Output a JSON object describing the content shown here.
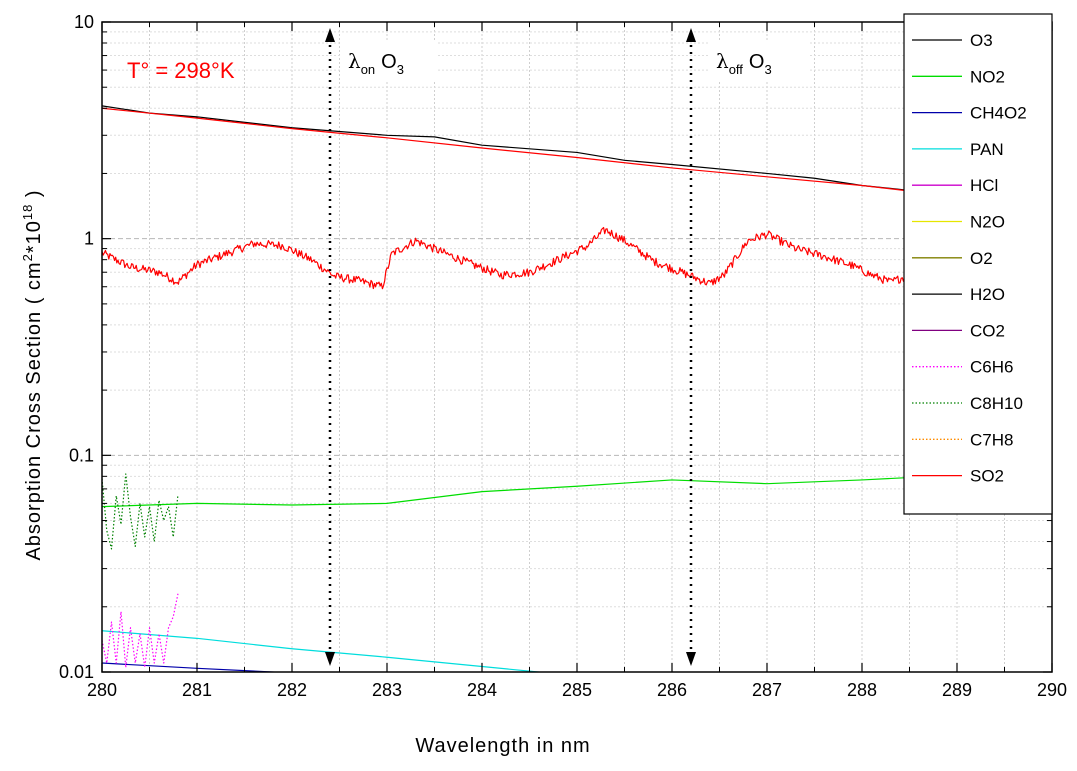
{
  "chart_data": {
    "type": "line",
    "xlabel": "Wavelength in nm",
    "ylabel_parts": {
      "prefix": "Absorption Cross Section ( cm",
      "sup1": "2",
      "mid": "*10",
      "sup2": "18",
      "suffix": " )"
    },
    "xlim": [
      280,
      290
    ],
    "ylim": [
      0.01,
      10
    ],
    "yscale": "log",
    "xticks": [
      280,
      281,
      282,
      283,
      284,
      285,
      286,
      287,
      288,
      289,
      290
    ],
    "xtick_labels": [
      "280",
      "281",
      "282",
      "283",
      "284",
      "285",
      "286",
      "287",
      "288",
      "289",
      "290"
    ],
    "yticks": [
      0.01,
      0.1,
      1,
      10
    ],
    "ytick_labels": [
      "0.01",
      "0.1",
      "1",
      "10"
    ],
    "grid": true,
    "legend_position": "top-right",
    "annotations": {
      "temperature": "T° = 298°K",
      "lambda_on": {
        "symbol": "λ",
        "sub": "on",
        "species": "O",
        "species_sub": "3",
        "x": 282.4
      },
      "lambda_off": {
        "symbol": "λ",
        "sub": "off",
        "species": "O",
        "species_sub": "3",
        "x": 286.2
      }
    },
    "series": [
      {
        "name": "O3",
        "color": "#000000",
        "style": "solid",
        "x": [
          280,
          280.5,
          281,
          282,
          283,
          283.5,
          284,
          285,
          285.5,
          286,
          287,
          287.5,
          288,
          288.5
        ],
        "y": [
          4.1,
          3.8,
          3.65,
          3.25,
          3.0,
          2.95,
          2.7,
          2.5,
          2.3,
          2.2,
          2.0,
          1.9,
          1.76,
          1.67
        ]
      },
      {
        "name": "NO2",
        "color": "#00dd00",
        "style": "solid",
        "x": [
          280,
          281,
          282,
          283,
          284,
          285,
          286,
          287,
          288,
          288.5
        ],
        "y": [
          0.058,
          0.06,
          0.059,
          0.06,
          0.068,
          0.072,
          0.077,
          0.074,
          0.077,
          0.079
        ]
      },
      {
        "name": "CH4O2",
        "color": "#0000aa",
        "style": "solid",
        "x": [
          280,
          281,
          282
        ],
        "y": [
          0.011,
          0.0104,
          0.0099
        ]
      },
      {
        "name": "PAN",
        "color": "#00dddd",
        "style": "solid",
        "x": [
          280,
          281,
          282,
          283,
          284,
          284.8
        ],
        "y": [
          0.0155,
          0.0143,
          0.0128,
          0.0117,
          0.0106,
          0.0098
        ]
      },
      {
        "name": "HCl",
        "color": "#cc00cc",
        "style": "solid",
        "x": [],
        "y": []
      },
      {
        "name": "N2O",
        "color": "#e6e600",
        "style": "solid",
        "x": [],
        "y": []
      },
      {
        "name": "O2",
        "color": "#808000",
        "style": "solid",
        "x": [],
        "y": []
      },
      {
        "name": "H2O",
        "color": "#000000",
        "style": "solid",
        "x": [],
        "y": []
      },
      {
        "name": "CO2",
        "color": "#800080",
        "style": "solid",
        "x": [],
        "y": []
      },
      {
        "name": "C6H6",
        "color": "#ff00ff",
        "style": "dotted",
        "x": [
          280.0,
          280.05,
          280.1,
          280.15,
          280.2,
          280.25,
          280.3,
          280.35,
          280.4,
          280.45,
          280.5,
          280.55,
          280.6,
          280.65,
          280.7,
          280.75,
          280.8
        ],
        "y": [
          0.014,
          0.011,
          0.017,
          0.011,
          0.019,
          0.0105,
          0.016,
          0.011,
          0.015,
          0.0105,
          0.016,
          0.011,
          0.015,
          0.011,
          0.016,
          0.018,
          0.023
        ]
      },
      {
        "name": "C8H10",
        "color": "#008000",
        "style": "dotted",
        "x": [
          280.0,
          280.05,
          280.1,
          280.15,
          280.2,
          280.25,
          280.3,
          280.35,
          280.4,
          280.45,
          280.5,
          280.55,
          280.6,
          280.65,
          280.7,
          280.75,
          280.8
        ],
        "y": [
          0.078,
          0.045,
          0.037,
          0.065,
          0.048,
          0.082,
          0.052,
          0.038,
          0.06,
          0.042,
          0.058,
          0.04,
          0.062,
          0.05,
          0.058,
          0.042,
          0.066
        ]
      },
      {
        "name": "C7H8",
        "color": "#ff8c00",
        "style": "dotted",
        "x": [],
        "y": []
      },
      {
        "name": "SO2",
        "color": "#ff0000",
        "style": "solid",
        "x": [
          280,
          281,
          282,
          283,
          284,
          285,
          286,
          287,
          288,
          288.5
        ],
        "y": [
          4.0,
          3.6,
          3.22,
          2.92,
          2.62,
          2.37,
          2.12,
          1.93,
          1.76,
          1.66
        ]
      },
      {
        "name": "SO2 (band)",
        "color": "#ff0000",
        "style": "noisy",
        "legend": false,
        "x": [
          280,
          280.3,
          280.6,
          280.8,
          281.0,
          281.3,
          281.6,
          281.9,
          282.2,
          282.45,
          282.7,
          282.95,
          283.05,
          283.3,
          283.6,
          283.9,
          284.2,
          284.5,
          284.8,
          285.1,
          285.3,
          285.5,
          285.8,
          286.1,
          286.4,
          286.55,
          286.8,
          287.0,
          287.3,
          287.6,
          287.9,
          288.1,
          288.3,
          288.5,
          288.6
        ],
        "y": [
          0.86,
          0.74,
          0.7,
          0.63,
          0.76,
          0.85,
          0.95,
          0.93,
          0.8,
          0.67,
          0.64,
          0.6,
          0.85,
          0.98,
          0.86,
          0.76,
          0.68,
          0.7,
          0.8,
          0.92,
          1.1,
          0.98,
          0.79,
          0.7,
          0.62,
          0.68,
          0.98,
          1.05,
          0.9,
          0.83,
          0.75,
          0.68,
          0.63,
          0.68,
          0.75
        ]
      }
    ]
  }
}
